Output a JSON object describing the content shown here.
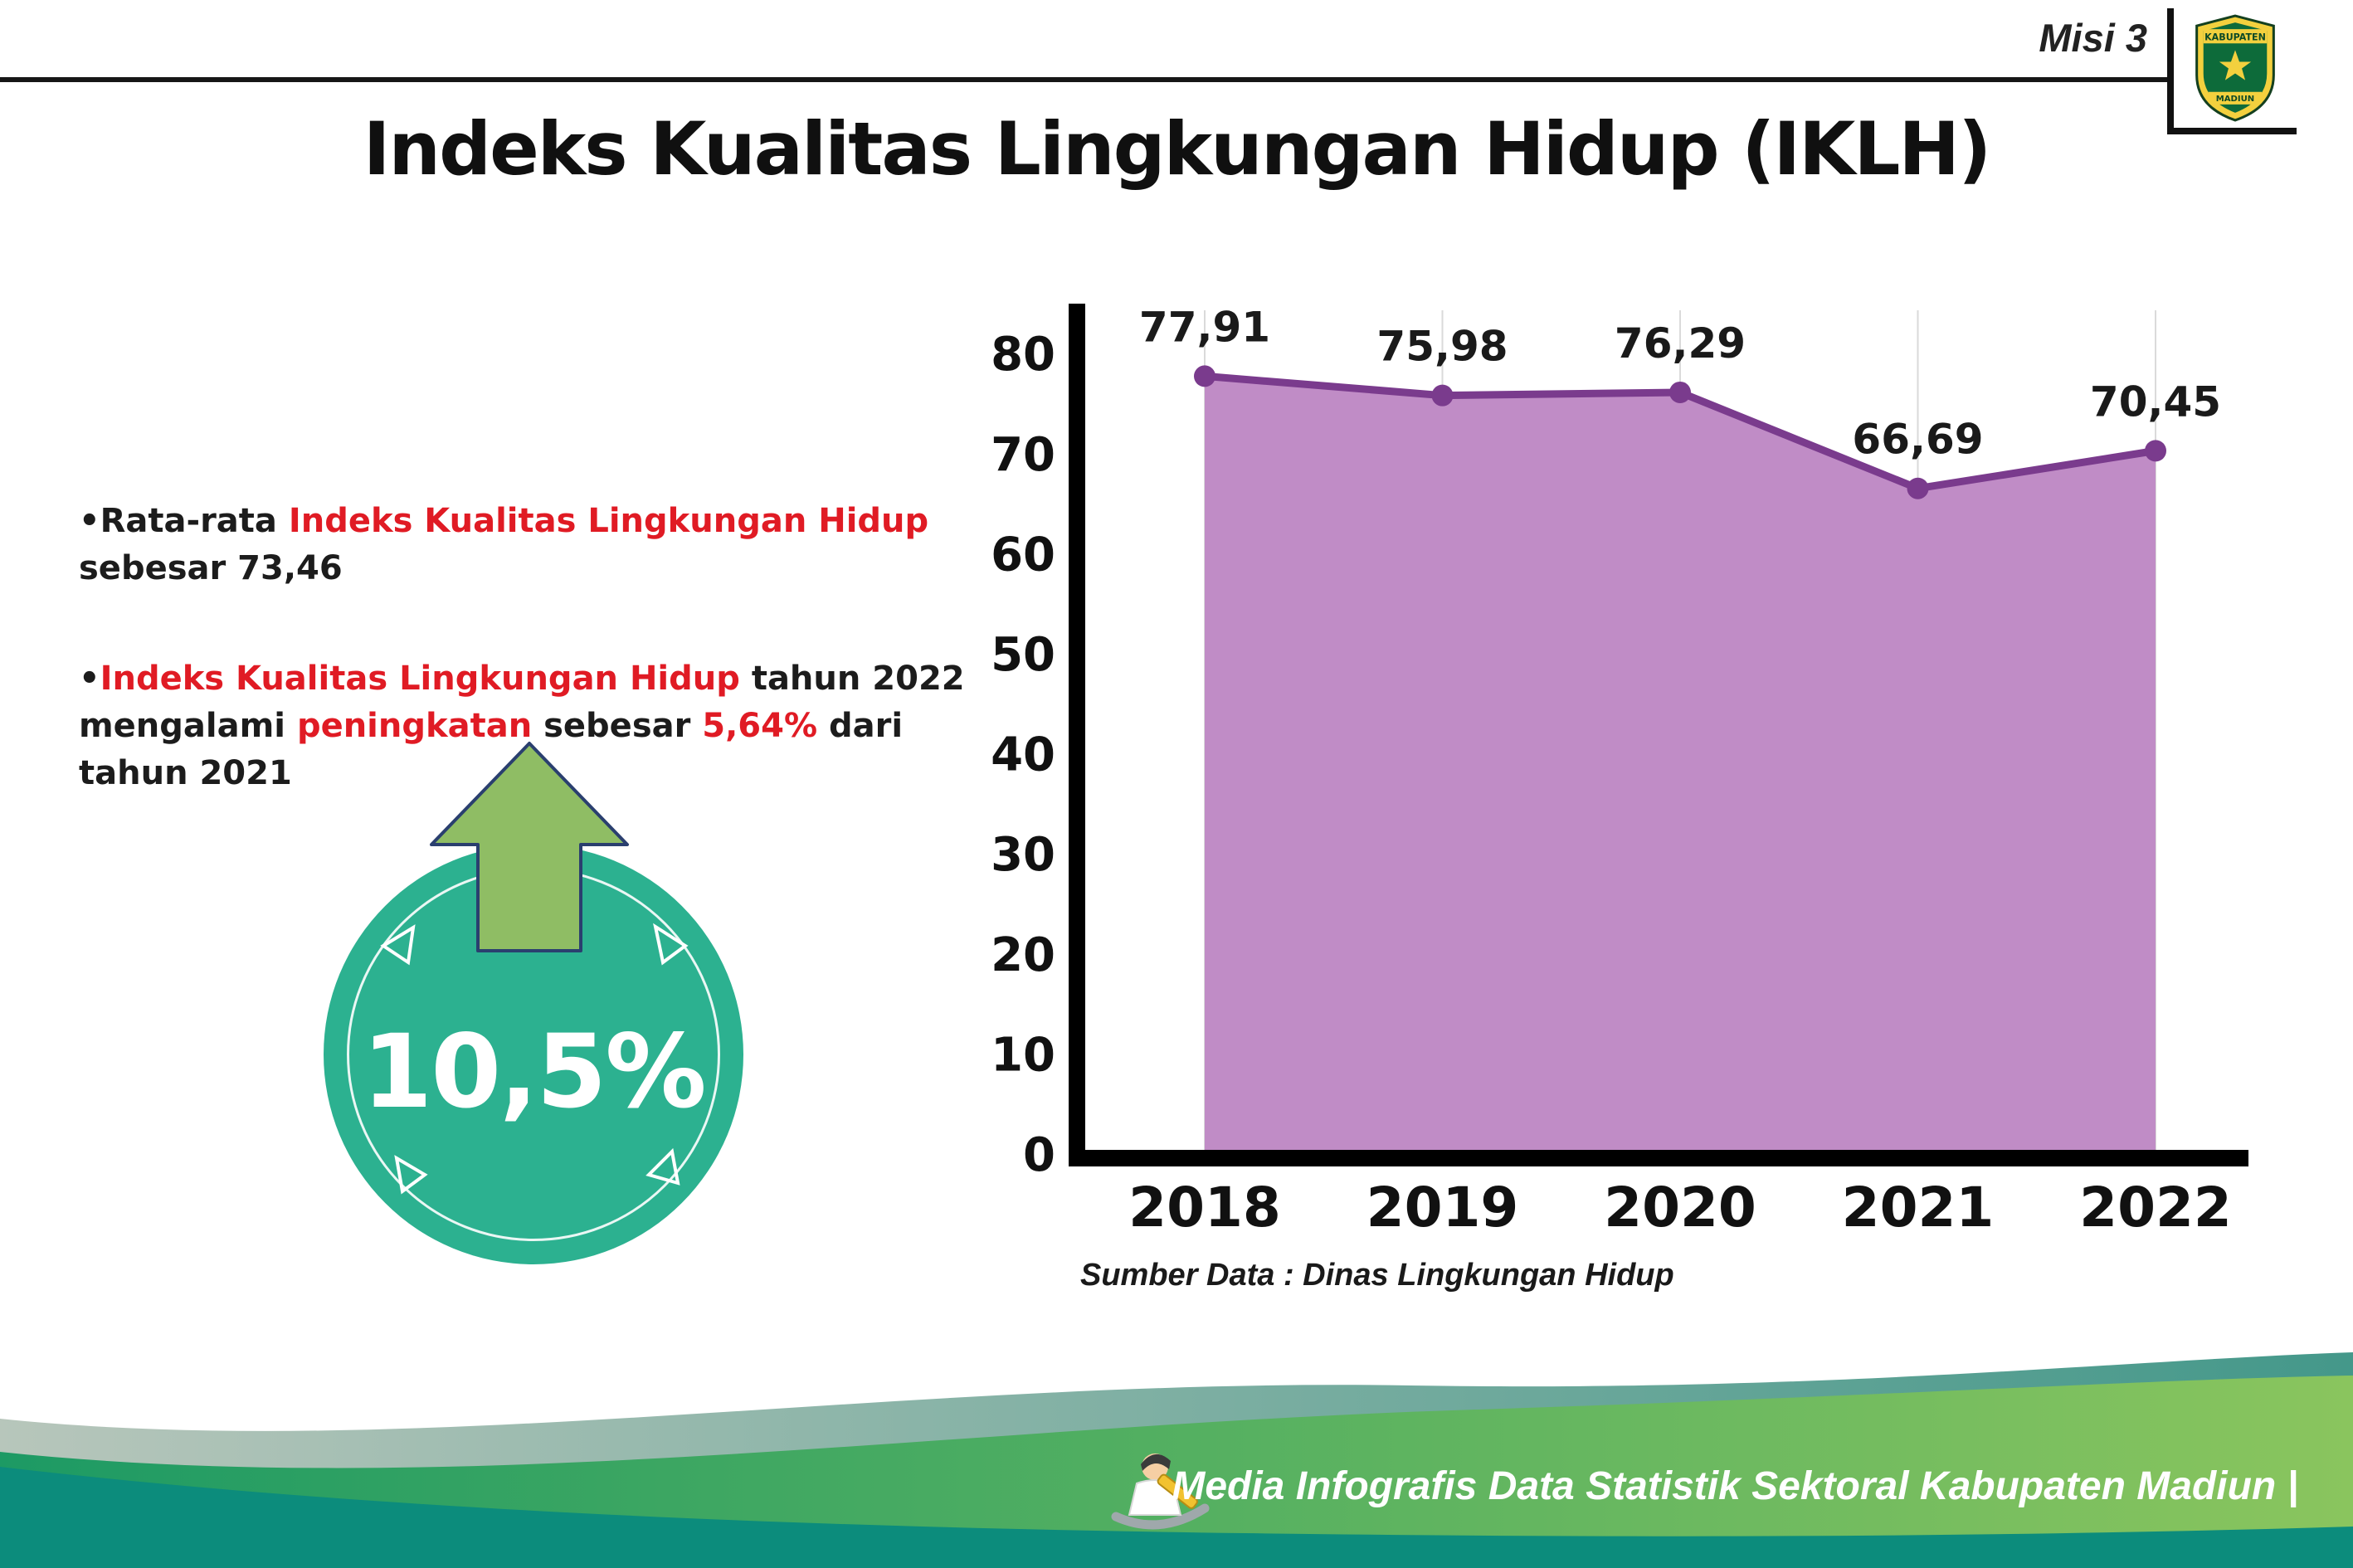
{
  "header": {
    "misi_label": "Misi 3",
    "logo_top_text": "KABUPATEN",
    "logo_bottom_text": "MADIUN"
  },
  "title": "Indeks Kualitas Lingkungan Hidup (IKLH)",
  "bullets": {
    "bullet1": {
      "segments": [
        {
          "text": "•Rata-rata "
        },
        {
          "text": "Indeks Kualitas Lingkungan Hidup"
        },
        {
          "text": "\nsebesar 73,46"
        }
      ]
    },
    "bullet2": {
      "segments": [
        {
          "text": "•"
        },
        {
          "text": "Indeks Kualitas Lingkungan Hidup"
        },
        {
          "text": " tahun 2022\nmengalami "
        },
        {
          "text": "peningkatan"
        },
        {
          "text": " sebesar "
        },
        {
          "text": "5,64%"
        },
        {
          "text": " dari\ntahun 2021"
        }
      ]
    }
  },
  "badge": {
    "value": "10,5%"
  },
  "chart_data": {
    "type": "area",
    "categories": [
      "2018",
      "2019",
      "2020",
      "2021",
      "2022"
    ],
    "values": [
      77.91,
      75.98,
      76.29,
      66.69,
      70.45
    ],
    "value_labels": [
      "77,91",
      "75,98",
      "76,29",
      "66,69",
      "70,45"
    ],
    "title": "",
    "xlabel": "",
    "ylabel": "",
    "ylim": [
      0,
      80
    ],
    "yticks": [
      0,
      10,
      20,
      30,
      40,
      50,
      60,
      70,
      80
    ],
    "grid": "vertical-light",
    "legend": "none",
    "line_color": "#7a3b8d",
    "fill_color": "#c08cc6",
    "source": "Sumber Data : Dinas Lingkungan Hidup"
  },
  "footer": {
    "text": "Media Infografis Data Statistik Sektoral Kabupaten Madiun |"
  },
  "colors": {
    "accent_red": "#e01b24",
    "badge_teal": "#2cb190",
    "arrow_green": "#8fbd64",
    "wave_green": "#2a9a66",
    "wave_teal": "#0c8c7c"
  }
}
